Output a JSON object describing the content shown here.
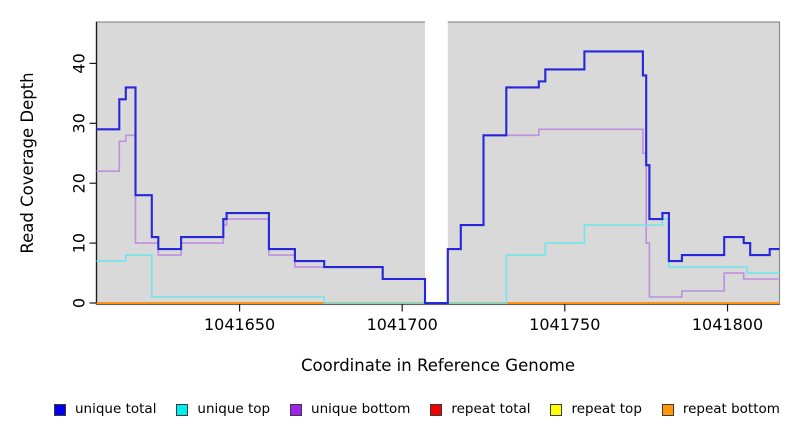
{
  "chart_data": {
    "type": "line",
    "subtype": "step",
    "title": "",
    "xlabel": "Coordinate in Reference Genome",
    "ylabel": "Read Coverage Depth",
    "x_ticks": [
      "1041650",
      "1041700",
      "1041750",
      "1041800"
    ],
    "y_ticks": [
      "0",
      "10",
      "20",
      "30",
      "40"
    ],
    "xlim": [
      1041606,
      1041816
    ],
    "ylim": [
      0,
      47
    ],
    "grid": false,
    "plot_bg": "#D9D9D9",
    "plot_border": "#8C8C8C",
    "gap_region": {
      "x_start": 1041707,
      "x_end": 1041714,
      "fill": "#FFFFFF"
    },
    "legend_position": "bottom",
    "series": [
      {
        "name": "unique total",
        "color": "#2626DA",
        "legend_color": "#0000EE",
        "width": 2.1,
        "points": [
          [
            1041606,
            29
          ],
          [
            1041613,
            34
          ],
          [
            1041615,
            36
          ],
          [
            1041618,
            18
          ],
          [
            1041623,
            11
          ],
          [
            1041625,
            9
          ],
          [
            1041632,
            11
          ],
          [
            1041645,
            14
          ],
          [
            1041646,
            15
          ],
          [
            1041659,
            9
          ],
          [
            1041667,
            7
          ],
          [
            1041676,
            6
          ],
          [
            1041694,
            4
          ],
          [
            1041707,
            0
          ],
          [
            1041714,
            9
          ],
          [
            1041718,
            13
          ],
          [
            1041725,
            28
          ],
          [
            1041732,
            36
          ],
          [
            1041742,
            37
          ],
          [
            1041744,
            39
          ],
          [
            1041756,
            42
          ],
          [
            1041774,
            38
          ],
          [
            1041775,
            23
          ],
          [
            1041776,
            14
          ],
          [
            1041780,
            15
          ],
          [
            1041782,
            7
          ],
          [
            1041786,
            8
          ],
          [
            1041799,
            11
          ],
          [
            1041805,
            10
          ],
          [
            1041807,
            8
          ],
          [
            1041813,
            9
          ]
        ]
      },
      {
        "name": "unique top",
        "color": "#70E6EA",
        "legend_color": "#00EEEE",
        "width": 1.6,
        "points": [
          [
            1041606,
            7
          ],
          [
            1041615,
            8
          ],
          [
            1041623,
            1
          ],
          [
            1041676,
            0
          ],
          [
            1041732,
            8
          ],
          [
            1041744,
            10
          ],
          [
            1041756,
            13
          ],
          [
            1041780,
            14
          ],
          [
            1041782,
            6
          ],
          [
            1041806,
            5
          ]
        ]
      },
      {
        "name": "unique bottom",
        "color": "#BE8FDE",
        "legend_color": "#A020F0",
        "width": 1.6,
        "points": [
          [
            1041606,
            22
          ],
          [
            1041613,
            27
          ],
          [
            1041615,
            28
          ],
          [
            1041618,
            10
          ],
          [
            1041625,
            8
          ],
          [
            1041632,
            10
          ],
          [
            1041645,
            13
          ],
          [
            1041646,
            14
          ],
          [
            1041659,
            8
          ],
          [
            1041667,
            6
          ],
          [
            1041694,
            4
          ],
          [
            1041707,
            0
          ],
          [
            1041714,
            9
          ],
          [
            1041718,
            13
          ],
          [
            1041725,
            28
          ],
          [
            1041742,
            29
          ],
          [
            1041774,
            25
          ],
          [
            1041775,
            10
          ],
          [
            1041776,
            1
          ],
          [
            1041786,
            2
          ],
          [
            1041799,
            5
          ],
          [
            1041805,
            4
          ]
        ]
      },
      {
        "name": "repeat total",
        "color": "#DD0000",
        "legend_color": "#EE0000",
        "width": 1.6,
        "points": [
          [
            1041606,
            0
          ]
        ]
      },
      {
        "name": "repeat top",
        "color": "#FFFF00",
        "legend_color": "#FFFF00",
        "width": 1.6,
        "points": [
          [
            1041606,
            0
          ]
        ]
      },
      {
        "name": "repeat bottom",
        "color": "#FF9310",
        "legend_color": "#FF9800",
        "width": 2.0,
        "points": [
          [
            1041606,
            0
          ]
        ]
      }
    ]
  }
}
